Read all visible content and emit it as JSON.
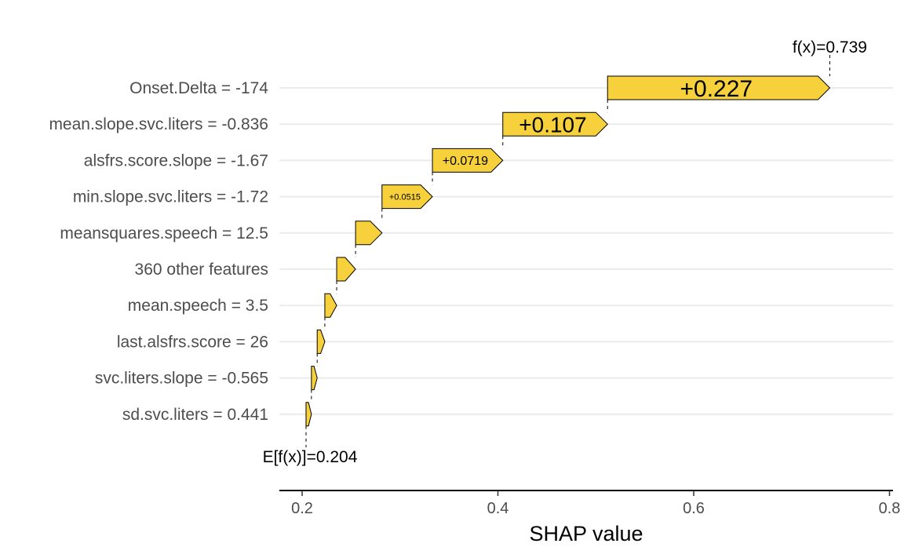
{
  "chart_data": {
    "type": "waterfall",
    "xlabel": "SHAP value",
    "xlim": [
      0.18,
      0.81
    ],
    "xticks": [
      0.2,
      0.4,
      0.6,
      0.8
    ],
    "xtick_labels": [
      "0.2",
      "0.4",
      "0.6",
      "0.8"
    ],
    "base_value": 0.204,
    "base_label": "E[f(x)]=0.204",
    "final_value": 0.739,
    "final_label": "f(x)=0.739",
    "bar_color": "#f6d13b",
    "features": [
      {
        "label": "Onset.Delta = -174",
        "start": 0.512,
        "value": 0.227,
        "text": "+0.227",
        "text_size": 30
      },
      {
        "label": "mean.slope.svc.liters = -0.836",
        "start": 0.405,
        "value": 0.107,
        "text": "+0.107",
        "text_size": 28
      },
      {
        "label": "alsfrs.score.slope = -1.67",
        "start": 0.3331,
        "value": 0.0719,
        "text": "+0.0719",
        "text_size": 16
      },
      {
        "label": "min.slope.svc.liters = -1.72",
        "start": 0.2816,
        "value": 0.0515,
        "text": "+0.0515",
        "text_size": 11
      },
      {
        "label": "meansquares.speech = 12.5",
        "start": 0.2546,
        "value": 0.027,
        "text": "",
        "text_size": 0
      },
      {
        "label": "360 other features",
        "start": 0.2353,
        "value": 0.0193,
        "text": "",
        "text_size": 0
      },
      {
        "label": "mean.speech = 3.5",
        "start": 0.2232,
        "value": 0.0121,
        "text": "",
        "text_size": 0
      },
      {
        "label": "last.alsfrs.score = 26",
        "start": 0.2154,
        "value": 0.0078,
        "text": "",
        "text_size": 0
      },
      {
        "label": "svc.liters.slope = -0.565",
        "start": 0.2095,
        "value": 0.0059,
        "text": "",
        "text_size": 0
      },
      {
        "label": "sd.svc.liters = 0.441",
        "start": 0.204,
        "value": 0.0055,
        "text": "",
        "text_size": 0
      }
    ]
  }
}
